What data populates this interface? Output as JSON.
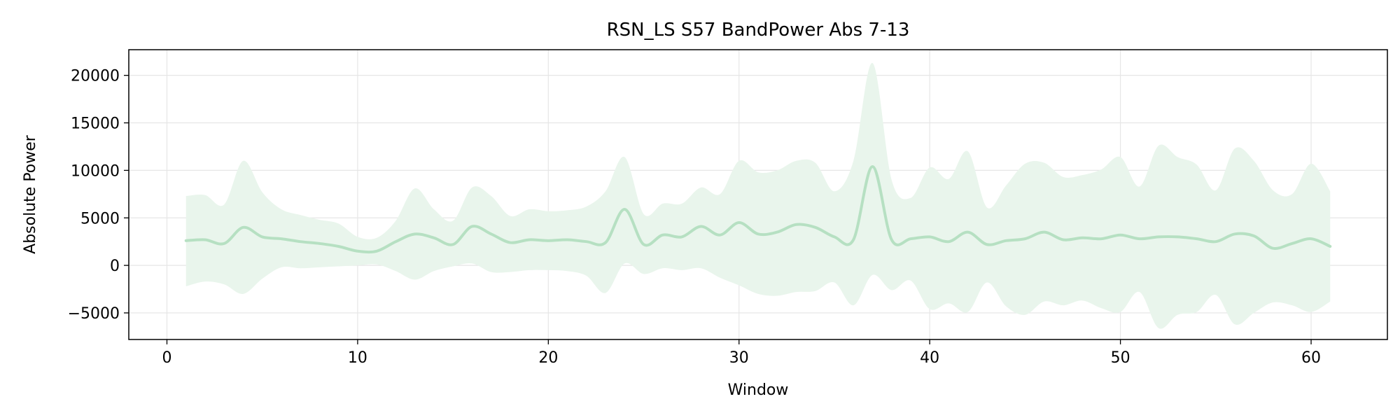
{
  "chart_data": {
    "type": "line",
    "title": "RSN_LS S57 BandPower Abs 7-13",
    "xlabel": "Window",
    "ylabel": "Absolute Power",
    "xlim": [
      -2,
      64
    ],
    "ylim": [
      -7800,
      22700
    ],
    "xticks": [
      0,
      10,
      20,
      30,
      40,
      50,
      60
    ],
    "xtick_labels": [
      "0",
      "10",
      "20",
      "30",
      "40",
      "50",
      "60"
    ],
    "yticks": [
      -5000,
      0,
      5000,
      10000,
      15000,
      20000
    ],
    "ytick_labels": [
      "−5000",
      "0",
      "5000",
      "10000",
      "15000",
      "20000"
    ],
    "grid": true,
    "colors": {
      "line": "#b6e0c2",
      "band": "#e9f5ec",
      "axis": "#000000",
      "grid": "#e6e6e6"
    },
    "series": [
      {
        "x": [
          1,
          2,
          3,
          4,
          5,
          6,
          7,
          8,
          9,
          10,
          11,
          12,
          13,
          14,
          15,
          16,
          17,
          18,
          19,
          20,
          21,
          22,
          23,
          24,
          25,
          26,
          27,
          28,
          29,
          30,
          31,
          32,
          33,
          34,
          35,
          36,
          37,
          38,
          39,
          40,
          41,
          42,
          43,
          44,
          45,
          46,
          47,
          48,
          49,
          50,
          51,
          52,
          53,
          54,
          55,
          56,
          57,
          58,
          59,
          60,
          61
        ],
        "mean": [
          2600,
          2700,
          2300,
          4000,
          3000,
          2800,
          2500,
          2300,
          2000,
          1500,
          1500,
          2500,
          3300,
          2900,
          2200,
          4100,
          3300,
          2400,
          2700,
          2600,
          2700,
          2500,
          2400,
          5900,
          2200,
          3200,
          3000,
          4100,
          3200,
          4500,
          3300,
          3500,
          4300,
          4000,
          3000,
          2700,
          10400,
          2700,
          2800,
          3000,
          2500,
          3500,
          2200,
          2600,
          2800,
          3500,
          2700,
          2900,
          2800,
          3200,
          2800,
          3000,
          3000,
          2800,
          2500,
          3300,
          3100,
          1800,
          2300,
          2800,
          2000
        ],
        "upper": [
          7300,
          7400,
          6400,
          11000,
          7700,
          5900,
          5300,
          4800,
          4400,
          3000,
          2900,
          4700,
          8100,
          5900,
          4700,
          8200,
          7300,
          5200,
          5900,
          5700,
          5800,
          6200,
          7800,
          11400,
          5400,
          6500,
          6500,
          8200,
          7500,
          11000,
          9800,
          10000,
          11000,
          10800,
          7800,
          11000,
          21300,
          9000,
          7100,
          10300,
          9100,
          12000,
          6100,
          8400,
          10700,
          10800,
          9300,
          9500,
          10100,
          11400,
          8300,
          12600,
          11400,
          10600,
          7900,
          12300,
          11000,
          7900,
          7500,
          10700,
          7800
        ],
        "lower": [
          -2200,
          -1700,
          -2000,
          -3000,
          -1400,
          -200,
          -300,
          -200,
          -100,
          0,
          100,
          -600,
          -1500,
          -600,
          -100,
          200,
          -700,
          -700,
          -500,
          -500,
          -600,
          -1100,
          -2900,
          200,
          -900,
          -300,
          -500,
          -300,
          -1300,
          -2100,
          -3000,
          -3200,
          -2800,
          -2700,
          -1800,
          -4200,
          -1000,
          -2600,
          -1600,
          -4600,
          -4000,
          -4900,
          -1800,
          -4300,
          -5200,
          -3800,
          -4200,
          -3700,
          -4500,
          -4900,
          -2800,
          -6600,
          -5200,
          -4900,
          -3100,
          -6200,
          -5000,
          -3900,
          -4200,
          -4900,
          -3800
        ]
      }
    ]
  }
}
